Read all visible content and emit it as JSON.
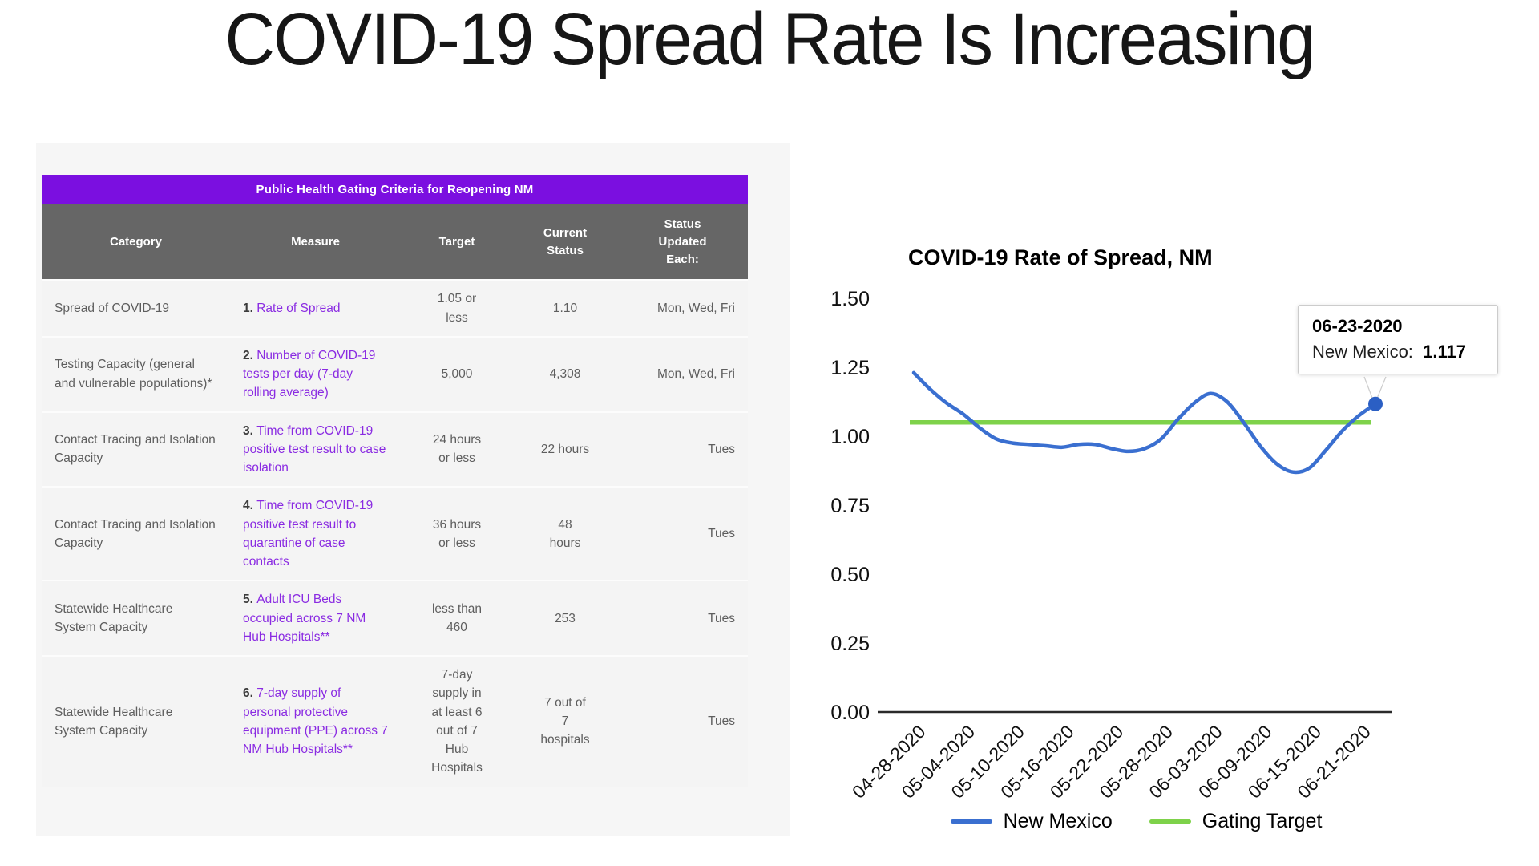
{
  "slide": {
    "title": "COVID-19 Spread Rate Is Increasing"
  },
  "table": {
    "banner": "Public Health Gating Criteria for Reopening NM",
    "columns": [
      "Category",
      "Measure",
      "Target",
      "Current\nStatus",
      "Status\nUpdated\nEach:"
    ],
    "rows": [
      {
        "category": "Spread of COVID-19",
        "measure_num": "1.",
        "measure_text": "Rate of Spread",
        "target": "1.05 or\nless",
        "current": "1.10",
        "updated": "Mon, Wed, Fri"
      },
      {
        "category": "Testing Capacity (general and vulnerable populations)*",
        "measure_num": "2.",
        "measure_text": "Number of COVID-19 tests per day (7-day rolling average)",
        "target": "5,000",
        "current": "4,308",
        "updated": "Mon, Wed, Fri"
      },
      {
        "category": "Contact Tracing and Isolation Capacity",
        "measure_num": "3.",
        "measure_text": "Time from COVID-19 positive test result to case isolation",
        "target": "24 hours\nor less",
        "current": "22 hours",
        "updated": "Tues"
      },
      {
        "category": "Contact Tracing and Isolation Capacity",
        "measure_num": "4.",
        "measure_text": "Time from COVID-19 positive test result to quarantine of case contacts",
        "target": "36 hours\nor less",
        "current": "48\nhours",
        "updated": "Tues"
      },
      {
        "category": "Statewide Healthcare System Capacity",
        "measure_num": "5.",
        "measure_text": "Adult ICU Beds occupied across 7 NM Hub Hospitals**",
        "target": "less than\n460",
        "current": "253",
        "updated": "Tues"
      },
      {
        "category": "Statewide Healthcare System Capacity",
        "measure_num": "6.",
        "measure_text": "7-day supply of personal protective equipment (PPE) across 7 NM Hub Hospitals**",
        "target": "7-day\nsupply in\nat least 6\nout of 7\nHub\nHospitals",
        "current": "7 out of\n7\nhospitals",
        "updated": "Tues"
      }
    ]
  },
  "chart_data": {
    "type": "line",
    "title": "COVID-19 Rate of Spread, NM",
    "xlabel": "",
    "ylabel": "",
    "ylim": [
      0,
      1.5
    ],
    "yticks": [
      "0.00",
      "0.25",
      "0.50",
      "0.75",
      "1.00",
      "1.25",
      "1.50"
    ],
    "grid": false,
    "legend_position": "bottom",
    "x": [
      "04-28-2020",
      "04-30-2020",
      "05-02-2020",
      "05-04-2020",
      "05-06-2020",
      "05-08-2020",
      "05-10-2020",
      "05-12-2020",
      "05-14-2020",
      "05-16-2020",
      "05-18-2020",
      "05-20-2020",
      "05-22-2020",
      "05-24-2020",
      "05-26-2020",
      "05-28-2020",
      "05-30-2020",
      "06-01-2020",
      "06-03-2020",
      "06-05-2020",
      "06-07-2020",
      "06-09-2020",
      "06-11-2020",
      "06-13-2020",
      "06-15-2020",
      "06-17-2020",
      "06-19-2020",
      "06-21-2020",
      "06-23-2020"
    ],
    "xtick_labels": [
      "04-28-2020",
      "05-04-2020",
      "05-10-2020",
      "05-16-2020",
      "05-22-2020",
      "05-28-2020",
      "06-03-2020",
      "06-09-2020",
      "06-15-2020",
      "06-21-2020"
    ],
    "series": [
      {
        "name": "New Mexico",
        "color": "#3a6fd0",
        "values": [
          1.23,
          1.17,
          1.12,
          1.08,
          1.03,
          0.99,
          0.975,
          0.97,
          0.965,
          0.96,
          0.97,
          0.97,
          0.955,
          0.945,
          0.955,
          0.99,
          1.06,
          1.12,
          1.155,
          1.125,
          1.05,
          0.965,
          0.9,
          0.87,
          0.885,
          0.95,
          1.02,
          1.075,
          1.117
        ]
      },
      {
        "name": "Gating Target",
        "color": "#7ed24a",
        "constant": 1.05
      }
    ],
    "tooltip": {
      "date": "06-23-2020",
      "label": "New Mexico:",
      "value": "1.117"
    }
  },
  "colors": {
    "banner_purple": "#7b0fe0",
    "header_gray": "#666666",
    "link_purple": "#8a2be2",
    "row_bg": "#f4f4f4",
    "line_blue": "#3a6fd0",
    "line_green": "#7ed24a",
    "marker_blue": "#2b5fc4"
  }
}
